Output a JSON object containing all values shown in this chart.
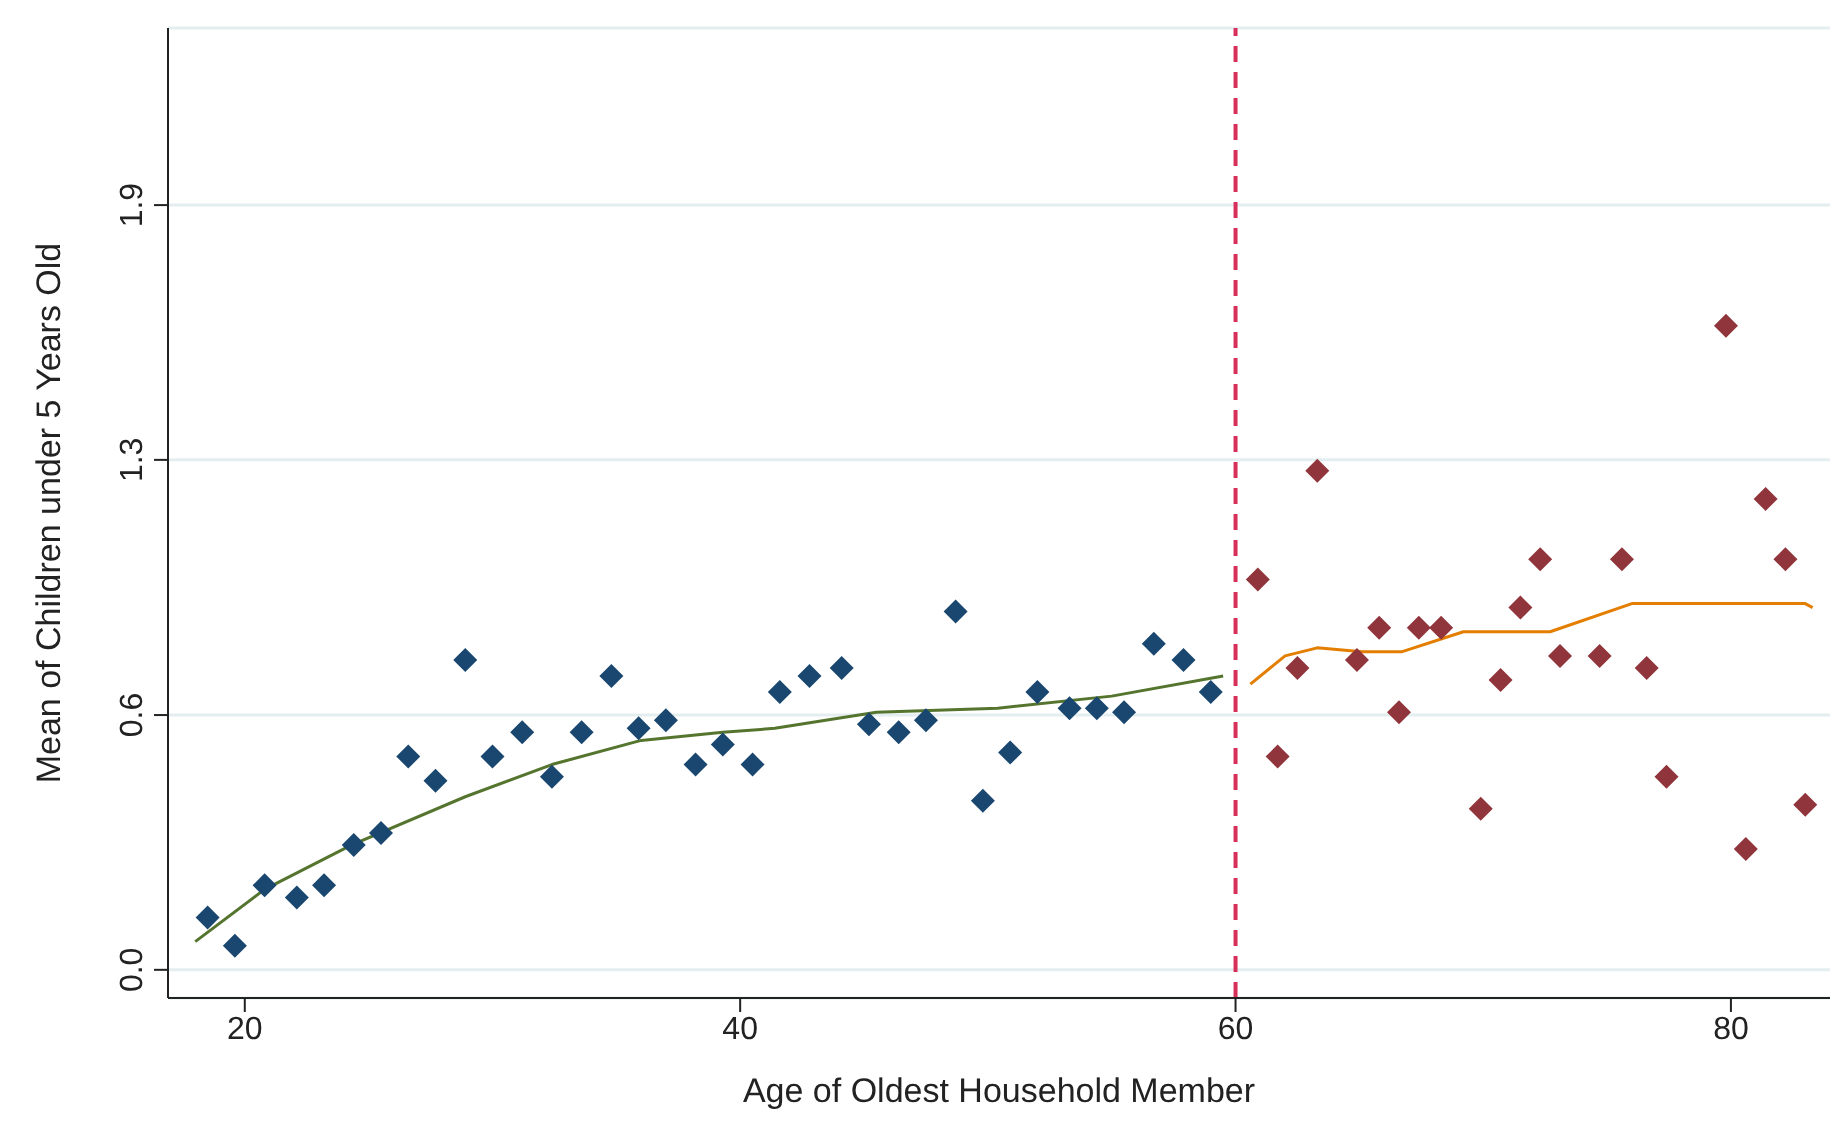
{
  "chart_data": {
    "type": "scatter",
    "xlabel": "Age of Oldest Household Member",
    "ylabel": "Mean of Children under 5 Years Old",
    "xlim": [
      16.9,
      84
    ],
    "xticks": [
      20,
      40,
      60,
      80
    ],
    "ylim": [
      -0.07,
      2.34
    ],
    "yticks": [
      {
        "value": 0,
        "label": "0.0"
      },
      {
        "value": 0.633,
        "label": "0.6"
      },
      {
        "value": 1.267,
        "label": "1.3"
      },
      {
        "value": 1.9,
        "label": "1.9"
      }
    ],
    "grid": "y",
    "legend": false,
    "series": [
      {
        "marker": "diamond",
        "color": "#1a476f",
        "x": [
          18.5,
          19.6,
          20.8,
          22.1,
          23.2,
          24.4,
          25.5,
          26.6,
          27.7,
          28.9,
          30.0,
          31.2,
          32.4,
          33.6,
          34.8,
          35.9,
          37.0,
          38.2,
          39.3,
          40.5,
          41.6,
          42.8,
          44.1,
          45.2,
          46.4,
          47.5,
          48.7,
          49.8,
          50.9,
          52.0,
          53.3,
          54.4,
          55.5,
          56.7,
          57.9,
          59.0
        ],
        "values": [
          0.13,
          0.06,
          0.21,
          0.18,
          0.21,
          0.31,
          0.34,
          0.53,
          0.47,
          0.77,
          0.53,
          0.59,
          0.48,
          0.59,
          0.73,
          0.6,
          0.62,
          0.51,
          0.56,
          0.51,
          0.69,
          0.73,
          0.75,
          0.61,
          0.59,
          0.62,
          0.89,
          0.42,
          0.54,
          0.69,
          0.65,
          0.65,
          0.64,
          0.81,
          0.77,
          0.69
        ]
      },
      {
        "marker": "diamond",
        "color": "#90353b",
        "x": [
          60.9,
          61.7,
          62.5,
          63.3,
          64.9,
          65.8,
          66.6,
          67.4,
          68.3,
          69.9,
          70.7,
          71.5,
          72.3,
          73.1,
          74.7,
          75.6,
          76.6,
          77.4,
          79.8,
          80.6,
          81.4,
          82.2,
          83.0
        ],
        "values": [
          0.97,
          0.53,
          0.75,
          1.24,
          0.77,
          0.85,
          0.64,
          0.85,
          0.85,
          0.4,
          0.72,
          0.9,
          1.02,
          0.78,
          0.78,
          1.02,
          0.75,
          0.48,
          1.6,
          0.3,
          1.17,
          1.02,
          0.41
        ]
      },
      {
        "type": "line",
        "marker": "none",
        "color": "#55752f",
        "x": [
          18.0,
          20.8,
          24.3,
          28.9,
          32.4,
          36.0,
          39.3,
          41.4,
          45.5,
          50.4,
          55.0,
          59.5
        ],
        "values": [
          0.07,
          0.2,
          0.31,
          0.43,
          0.51,
          0.57,
          0.59,
          0.6,
          0.64,
          0.65,
          0.68,
          0.73
        ]
      },
      {
        "type": "line",
        "marker": "none",
        "color": "#e37e00",
        "x": [
          60.6,
          62.0,
          63.3,
          65.1,
          66.7,
          69.2,
          72.7,
          76.0,
          83.0,
          83.3
        ],
        "values": [
          0.71,
          0.78,
          0.8,
          0.79,
          0.79,
          0.84,
          0.84,
          0.91,
          0.91,
          0.9
        ]
      }
    ],
    "ref_lines": [
      {
        "axis": "x",
        "value": 60,
        "color": "#d62f5a",
        "line_style": "dashed"
      }
    ]
  }
}
